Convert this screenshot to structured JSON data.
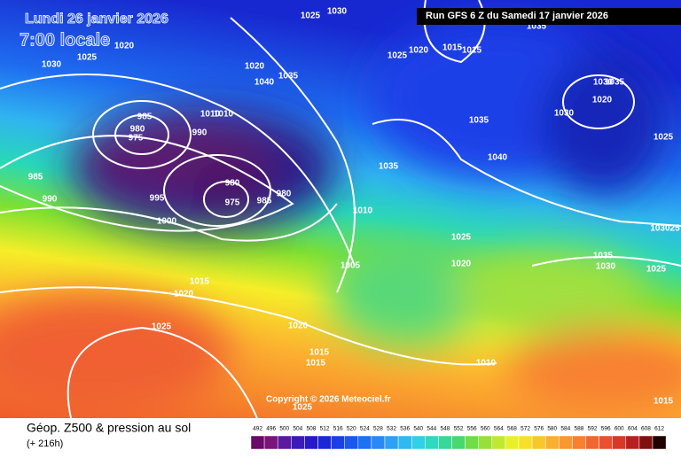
{
  "header": {
    "date": "Lundi 26 janvier 2026",
    "time": "7:00 locale",
    "run": "Run GFS 6 Z du Samedi 17 janvier 2026"
  },
  "copyright": "Copyright © 2026 Meteociel.fr",
  "footer": {
    "title": "Géop. Z500 & pression au sol",
    "lead": "(+ 216h)"
  },
  "scale": {
    "labels": [
      "492",
      "496",
      "500",
      "504",
      "508",
      "512",
      "516",
      "520",
      "524",
      "528",
      "532",
      "536",
      "540",
      "544",
      "548",
      "552",
      "556",
      "560",
      "564",
      "568",
      "572",
      "576",
      "580",
      "584",
      "588",
      "592",
      "596",
      "600",
      "604",
      "608",
      "612"
    ]
  },
  "isobar_labels": [
    "1020",
    "1025",
    "1030",
    "1025",
    "1030",
    "1020",
    "1040",
    "1035",
    "1010",
    "1010",
    "985",
    "980",
    "975",
    "990",
    "985",
    "990",
    "995",
    "1000",
    "980",
    "975",
    "985",
    "980",
    "1025",
    "1020",
    "1015",
    "1015",
    "1035",
    "1040",
    "1035",
    "1010",
    "1005",
    "1025",
    "1020",
    "1015",
    "1020",
    "1025",
    "1020",
    "1015",
    "1015",
    "1010",
    "1025",
    "1030",
    "1030",
    "1020",
    "1035",
    "1025",
    "1035",
    "1030",
    "103025",
    "1025",
    "1015",
    "1035"
  ]
}
